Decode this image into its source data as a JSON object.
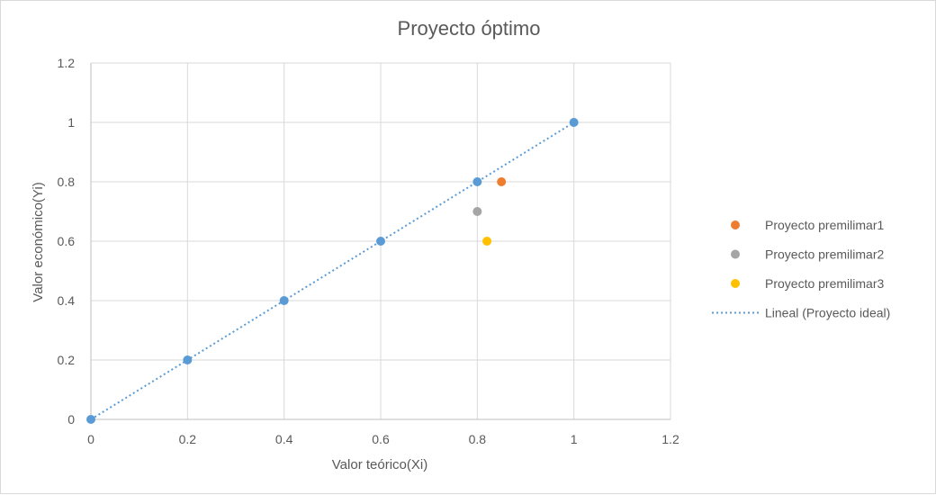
{
  "chart_data": {
    "type": "scatter",
    "title": "Proyecto óptimo",
    "xlabel": "Valor teórico(Xi)",
    "ylabel": "Valor económico(Yi)",
    "xlim": [
      0,
      1.2
    ],
    "ylim": [
      0,
      1.2
    ],
    "xticks": [
      "0",
      "0.2",
      "0.4",
      "0.6",
      "0.8",
      "1",
      "1.2"
    ],
    "yticks": [
      "0",
      "0.2",
      "0.4",
      "0.6",
      "0.8",
      "1",
      "1.2"
    ],
    "grid": true,
    "legend_position": "right",
    "series": [
      {
        "name": "",
        "color": "#5b9bd5",
        "marker": "circle",
        "legend": false,
        "points": [
          [
            0,
            0
          ],
          [
            0.2,
            0.2
          ],
          [
            0.4,
            0.4
          ],
          [
            0.6,
            0.6
          ],
          [
            0.8,
            0.8
          ],
          [
            1,
            1
          ]
        ]
      },
      {
        "name": "Proyecto premilimar1",
        "color": "#ed7d31",
        "marker": "circle",
        "legend": true,
        "points": [
          [
            0.85,
            0.8
          ]
        ]
      },
      {
        "name": "Proyecto premilimar2",
        "color": "#a5a5a5",
        "marker": "circle",
        "legend": true,
        "points": [
          [
            0.8,
            0.7
          ]
        ]
      },
      {
        "name": "Proyecto premilimar3",
        "color": "#ffc000",
        "marker": "circle",
        "legend": true,
        "points": [
          [
            0.82,
            0.6
          ]
        ]
      }
    ],
    "trendline": {
      "name": "Lineal (Proyecto ideal)",
      "color": "#5b9bd5",
      "style": "dotted",
      "from": [
        0,
        0
      ],
      "to": [
        1,
        1
      ]
    }
  }
}
